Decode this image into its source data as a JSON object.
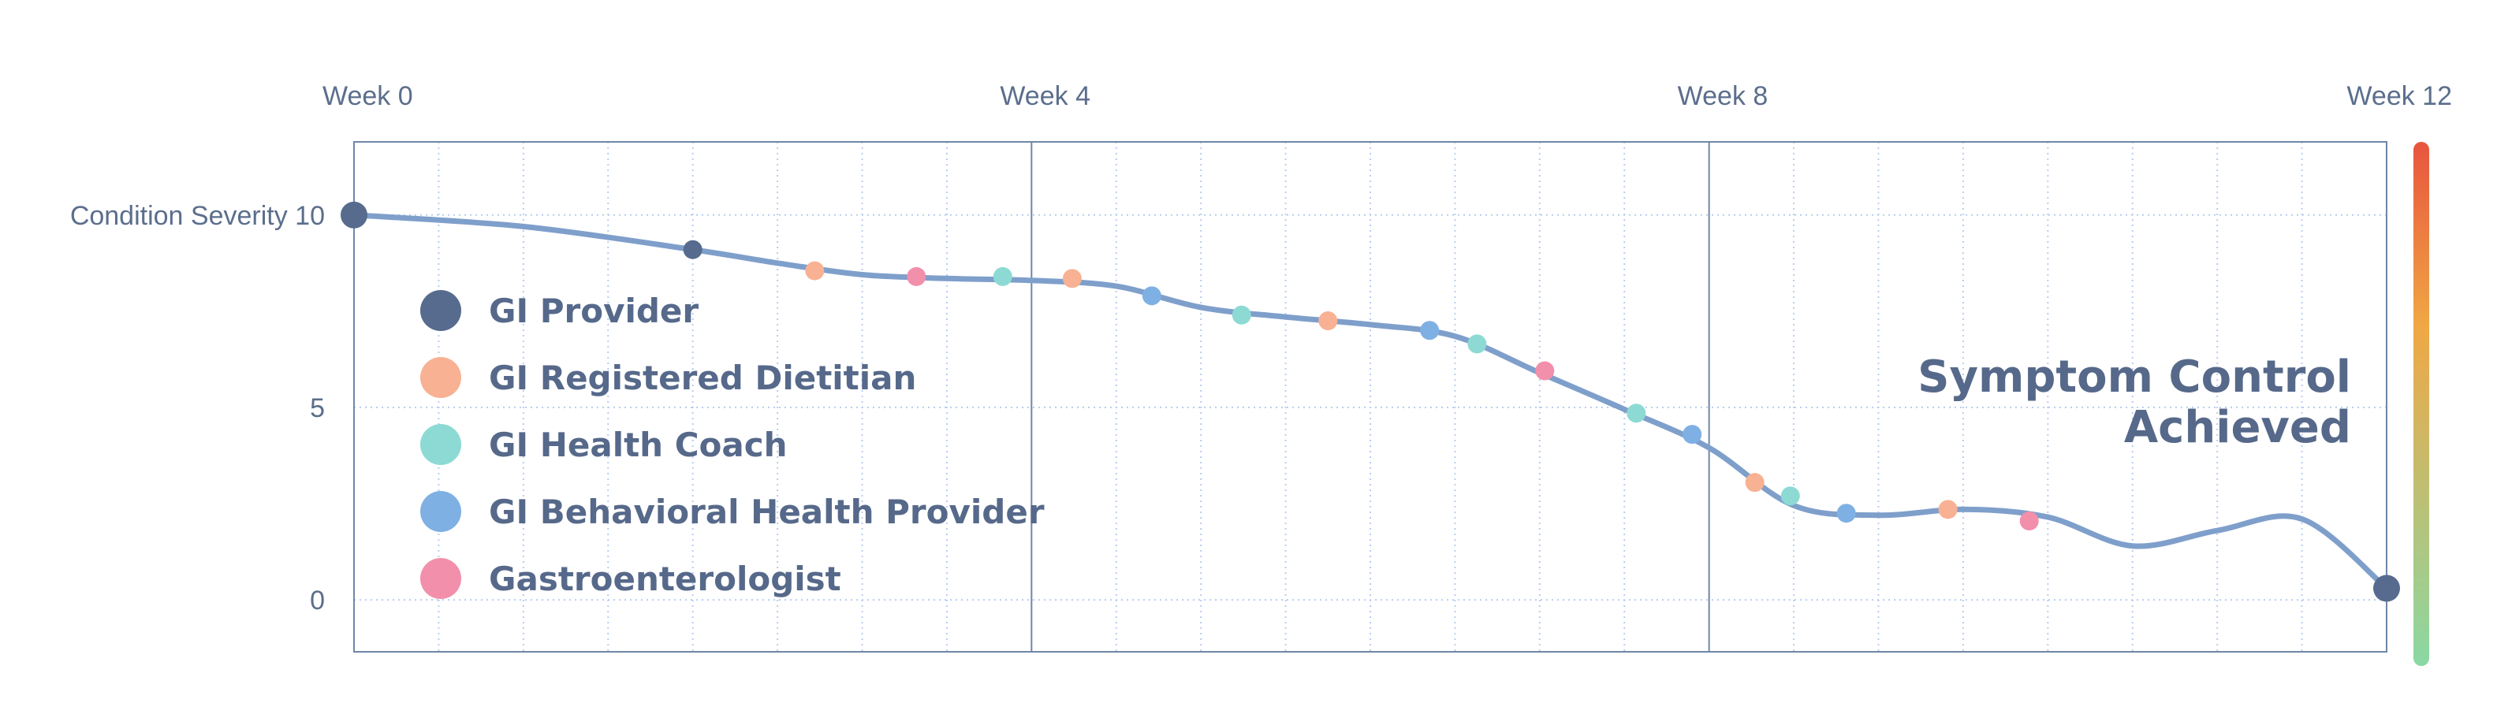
{
  "chart_data": {
    "type": "line",
    "x_ticks": [
      {
        "value": 0,
        "label": "Week 0"
      },
      {
        "value": 4,
        "label": "Week 4"
      },
      {
        "value": 8,
        "label": "Week 8"
      },
      {
        "value": 12,
        "label": "Week 12"
      }
    ],
    "y_ticks": [
      {
        "value": 10,
        "label": "Condition Severity 10"
      },
      {
        "value": 5,
        "label": "5"
      },
      {
        "value": 0,
        "label": "0"
      }
    ],
    "xlim": [
      0,
      12
    ],
    "ylim": [
      -1.35,
      11.9
    ],
    "grid": true,
    "legend_placement": "left",
    "legend": [
      {
        "name": "GI Provider",
        "color": "#566b8e"
      },
      {
        "name": "GI Registered Dietitian",
        "color": "#f8b193"
      },
      {
        "name": "GI Health Coach",
        "color": "#8ddad4"
      },
      {
        "name": "GI Behavioral Health Provider",
        "color": "#7fb0e4"
      },
      {
        "name": "Gastroenterologist",
        "color": "#f28fab"
      }
    ],
    "line_color": "#7f9fcb",
    "curve": [
      [
        0,
        10
      ],
      [
        1,
        9.7
      ],
      [
        2,
        9.1
      ],
      [
        2.5,
        8.75
      ],
      [
        3,
        8.45
      ],
      [
        3.5,
        8.35
      ],
      [
        4,
        8.3
      ],
      [
        4.5,
        8.15
      ],
      [
        5,
        7.6
      ],
      [
        5.5,
        7.35
      ],
      [
        6,
        7.15
      ],
      [
        6.5,
        6.85
      ],
      [
        7,
        5.9
      ],
      [
        7.5,
        4.95
      ],
      [
        8,
        3.95
      ],
      [
        8.5,
        2.45
      ],
      [
        9,
        2.2
      ],
      [
        9.5,
        2.35
      ],
      [
        10,
        2.15
      ],
      [
        10.5,
        1.4
      ],
      [
        11,
        1.8
      ],
      [
        11.5,
        2.1
      ],
      [
        12,
        0.3
      ]
    ],
    "points": [
      {
        "x": 0,
        "y": 10,
        "role": "GI Provider",
        "size": "large"
      },
      {
        "x": 2,
        "y": 9.1,
        "role": "GI Provider",
        "size": "small"
      },
      {
        "x": 2.72,
        "y": 8.55,
        "role": "GI Registered Dietitian",
        "size": "small"
      },
      {
        "x": 3.32,
        "y": 8.4,
        "role": "Gastroenterologist",
        "size": "small"
      },
      {
        "x": 3.83,
        "y": 8.4,
        "role": "GI Health Coach",
        "size": "small"
      },
      {
        "x": 4.24,
        "y": 8.35,
        "role": "GI Registered Dietitian",
        "size": "small"
      },
      {
        "x": 4.71,
        "y": 7.9,
        "role": "GI Behavioral Health Provider",
        "size": "small"
      },
      {
        "x": 5.24,
        "y": 7.4,
        "role": "GI Health Coach",
        "size": "small"
      },
      {
        "x": 5.75,
        "y": 7.25,
        "role": "GI Registered Dietitian",
        "size": "small"
      },
      {
        "x": 6.35,
        "y": 7.0,
        "role": "GI Behavioral Health Provider",
        "size": "small"
      },
      {
        "x": 6.63,
        "y": 6.65,
        "role": "GI Health Coach",
        "size": "small"
      },
      {
        "x": 7.03,
        "y": 5.95,
        "role": "Gastroenterologist",
        "size": "small"
      },
      {
        "x": 7.57,
        "y": 4.85,
        "role": "GI Health Coach",
        "size": "small"
      },
      {
        "x": 7.9,
        "y": 4.3,
        "role": "GI Behavioral Health Provider",
        "size": "small"
      },
      {
        "x": 8.27,
        "y": 3.05,
        "role": "GI Registered Dietitian",
        "size": "small"
      },
      {
        "x": 8.48,
        "y": 2.7,
        "role": "GI Health Coach",
        "size": "small"
      },
      {
        "x": 8.81,
        "y": 2.25,
        "role": "GI Behavioral Health Provider",
        "size": "small"
      },
      {
        "x": 9.41,
        "y": 2.35,
        "role": "GI Registered Dietitian",
        "size": "small"
      },
      {
        "x": 9.89,
        "y": 2.05,
        "role": "Gastroenterologist",
        "size": "small"
      },
      {
        "x": 12,
        "y": 0.3,
        "role": "GI Provider",
        "size": "large"
      }
    ],
    "annotation": [
      "Symptom Control",
      "Achieved"
    ],
    "severity_scale_colors": [
      "#e8543e",
      "#f0a744",
      "#8ad8a3"
    ]
  }
}
